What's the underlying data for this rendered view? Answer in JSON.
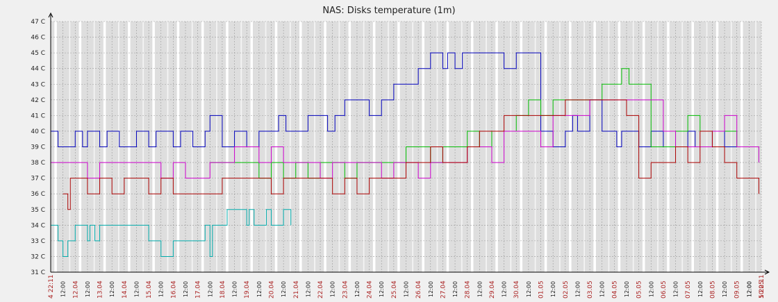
{
  "chart_data": {
    "type": "line",
    "title": "NAS: Disks temperature (1m)",
    "xlabel": "",
    "ylabel": "",
    "y_unit": "C",
    "ylim": [
      31,
      47
    ],
    "yticks": [
      "31 C",
      "32 C",
      "33 C",
      "34 C",
      "35 C",
      "36 C",
      "37 C",
      "38 C",
      "39 C",
      "40 C",
      "41 C",
      "42 C",
      "43 C",
      "44 C",
      "45 C",
      "46 C",
      "47 C"
    ],
    "grid": true,
    "legend": "none",
    "x_start_label": "4 22:11",
    "x_end_label": "5 22:11",
    "x_day_labels": [
      "12.04",
      "13.04",
      "14.04",
      "15.04",
      "16.04",
      "17.04",
      "18.04",
      "19.04",
      "20.04",
      "21.04",
      "22.04",
      "23.04",
      "24.04",
      "25.04",
      "26.04",
      "27.04",
      "28.04",
      "29.04",
      "30.04",
      "01.05",
      "02.05",
      "03.05",
      "04.05",
      "05.05",
      "06.05",
      "07.05",
      "08.05",
      "09.05",
      "10.05"
    ],
    "x_midday_label": "12:00",
    "x_day_index": [
      0,
      1,
      2,
      3,
      4,
      5,
      6,
      7,
      8,
      9,
      10,
      11,
      12,
      13,
      14,
      15,
      16,
      17,
      18,
      19,
      20,
      21,
      22,
      23,
      24,
      25,
      26,
      27,
      28
    ],
    "x_span_days": 29.0,
    "series": [
      {
        "color": "#0000bb",
        "x": [
          0,
          0.3,
          0.6,
          1.0,
          1.3,
          1.5,
          2.0,
          2.3,
          2.8,
          3.1,
          3.5,
          4.0,
          4.3,
          5.0,
          5.3,
          5.8,
          6.0,
          6.3,
          6.5,
          7.0,
          7.5,
          7.8,
          8.0,
          8.5,
          9.0,
          9.3,
          9.6,
          10.0,
          10.5,
          11.0,
          11.3,
          11.6,
          12.0,
          12.5,
          13.0,
          13.5,
          14.0,
          14.5,
          15.0,
          15.2,
          15.5,
          16.0,
          16.2,
          16.5,
          16.8,
          17.0,
          17.5,
          18.0,
          18.5,
          19.0,
          19.5,
          20.0,
          20.5,
          21.0,
          21.3,
          21.5,
          22.0,
          22.5,
          23.0,
          23.1,
          23.3,
          23.6,
          24.0,
          24.5,
          25.0,
          25.5,
          26.0,
          26.3,
          26.5,
          27.0,
          27.5,
          28.0,
          28.5,
          28.9
        ],
        "values": [
          40,
          39,
          39,
          40,
          39,
          40,
          39,
          40,
          39,
          39,
          40,
          39,
          40,
          39,
          40,
          39,
          39,
          40,
          41,
          39,
          40,
          40,
          39,
          40,
          40,
          41,
          40,
          40,
          41,
          41,
          40,
          41,
          42,
          42,
          41,
          42,
          43,
          43,
          44,
          44,
          45,
          44,
          45,
          44,
          45,
          45,
          45,
          45,
          44,
          45,
          45,
          40,
          39,
          40,
          41,
          40,
          42,
          40,
          40,
          39,
          40,
          40,
          39,
          40,
          39,
          39,
          40,
          39,
          39,
          40,
          39,
          39,
          39,
          39
        ]
      },
      {
        "color": "#00bb00",
        "x": [
          6.5,
          7.0,
          7.5,
          8.0,
          8.5,
          9.0,
          9.5,
          10.0,
          10.5,
          11.0,
          11.5,
          12.0,
          12.5,
          13.0,
          13.5,
          14.0,
          14.5,
          15.0,
          15.5,
          16.0,
          16.5,
          17.0,
          17.5,
          18.0,
          18.5,
          19.0,
          19.5,
          20.0,
          20.5,
          21.0,
          21.5,
          22.0,
          22.5,
          23.0,
          23.3,
          23.6,
          24.0,
          24.5,
          25.0,
          25.5,
          26.0,
          26.5,
          27.0,
          27.5,
          28.0,
          28.5,
          28.9
        ],
        "values": [
          38,
          38,
          38,
          38,
          37,
          38,
          37,
          38,
          37,
          38,
          38,
          37,
          38,
          38,
          38,
          38,
          39,
          39,
          38,
          39,
          39,
          40,
          39,
          40,
          40,
          41,
          42,
          41,
          42,
          42,
          42,
          42,
          43,
          43,
          44,
          43,
          43,
          39,
          39,
          40,
          41,
          40,
          40,
          40,
          39,
          39,
          38
        ]
      },
      {
        "color": "#cc00cc",
        "x": [
          0,
          0.5,
          1.0,
          1.5,
          2.0,
          2.5,
          3.0,
          3.5,
          4.0,
          4.5,
          5.0,
          5.5,
          6.0,
          6.5,
          7.0,
          7.5,
          8.0,
          8.5,
          9.0,
          9.5,
          10.0,
          10.5,
          11.0,
          11.5,
          12.0,
          12.5,
          13.0,
          13.5,
          14.0,
          14.5,
          15.0,
          15.5,
          16.0,
          16.5,
          17.0,
          17.5,
          18.0,
          18.5,
          19.0,
          19.5,
          20.0,
          20.5,
          21.0,
          21.5,
          22.0,
          22.5,
          23.0,
          23.5,
          24.0,
          24.5,
          25.0,
          25.5,
          26.0,
          26.5,
          27.0,
          27.5,
          28.0,
          28.5,
          28.9
        ],
        "values": [
          38,
          38,
          38,
          37,
          38,
          38,
          38,
          38,
          38,
          37,
          38,
          37,
          37,
          38,
          38,
          39,
          39,
          38,
          39,
          38,
          38,
          38,
          37,
          38,
          38,
          38,
          38,
          37,
          38,
          38,
          37,
          38,
          38,
          38,
          39,
          39,
          38,
          40,
          40,
          40,
          39,
          41,
          41,
          41,
          42,
          42,
          42,
          42,
          42,
          42,
          40,
          39,
          39,
          39,
          40,
          41,
          39,
          39,
          38
        ]
      },
      {
        "color": "#aa0000",
        "x": [
          0.5,
          0.7,
          0.8,
          1.0,
          1.5,
          2.0,
          2.5,
          3.0,
          3.5,
          4.0,
          4.5,
          5.0,
          5.5,
          6.0,
          6.5,
          7.0,
          7.5,
          8.0,
          8.5,
          9.0,
          9.5,
          10.0,
          10.5,
          11.0,
          11.5,
          12.0,
          12.5,
          13.0,
          13.5,
          14.0,
          14.5,
          15.0,
          15.5,
          16.0,
          16.5,
          17.0,
          17.5,
          18.0,
          18.5,
          19.0,
          19.5,
          20.0,
          20.5,
          21.0,
          21.5,
          22.0,
          22.5,
          23.0,
          23.5,
          24.0,
          24.2,
          24.5,
          25.0,
          25.5,
          26.0,
          26.5,
          27.0,
          27.5,
          28.0,
          28.5,
          28.9
        ],
        "values": [
          36,
          35,
          37,
          37,
          36,
          37,
          36,
          37,
          37,
          36,
          37,
          36,
          36,
          36,
          36,
          37,
          37,
          37,
          37,
          36,
          37,
          37,
          37,
          37,
          36,
          37,
          36,
          37,
          37,
          37,
          38,
          38,
          39,
          38,
          38,
          39,
          40,
          40,
          41,
          41,
          41,
          41,
          41,
          42,
          42,
          42,
          42,
          42,
          41,
          37,
          37,
          38,
          38,
          39,
          38,
          40,
          39,
          38,
          37,
          37,
          36
        ]
      },
      {
        "color": "#00aaaa",
        "x": [
          0,
          0.3,
          0.5,
          0.7,
          1.0,
          1.5,
          1.6,
          1.8,
          2.0,
          3.0,
          3.5,
          4.0,
          4.2,
          4.5,
          5.0,
          5.5,
          6.0,
          6.3,
          6.5,
          6.6,
          7.0,
          7.2,
          7.5,
          8.0,
          8.1,
          8.3,
          8.5,
          8.8,
          9.0,
          9.2,
          9.5,
          9.8
        ],
        "values": [
          34,
          33,
          32,
          33,
          34,
          33,
          34,
          33,
          34,
          34,
          34,
          33,
          33,
          32,
          33,
          33,
          33,
          34,
          32,
          34,
          34,
          35,
          35,
          34,
          35,
          34,
          34,
          35,
          34,
          34,
          35,
          34
        ]
      }
    ]
  }
}
